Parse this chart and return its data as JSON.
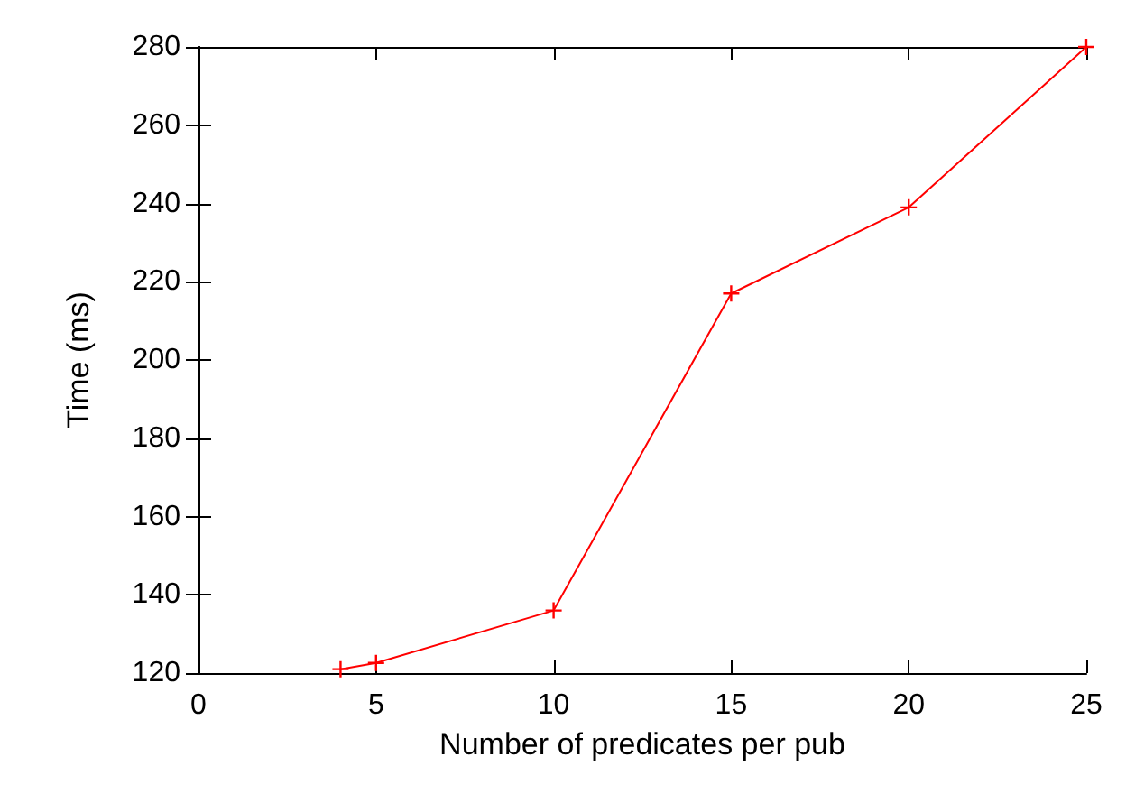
{
  "chart_data": {
    "type": "line",
    "xlabel": "Number of predicates per pub",
    "ylabel": "Time (ms)",
    "x": [
      4,
      5,
      10,
      15,
      20,
      25
    ],
    "series": [
      {
        "color": "#ff0000",
        "values": [
          121,
          122.6,
          136,
          217,
          239,
          280
        ]
      }
    ],
    "xlim": [
      0,
      25
    ],
    "xticks": [
      0,
      5,
      10,
      15,
      20,
      25
    ],
    "ylim": [
      120,
      280
    ],
    "yticks": [
      120,
      140,
      160,
      180,
      200,
      220,
      240,
      260,
      280
    ],
    "marker": "cross",
    "grid": false
  }
}
